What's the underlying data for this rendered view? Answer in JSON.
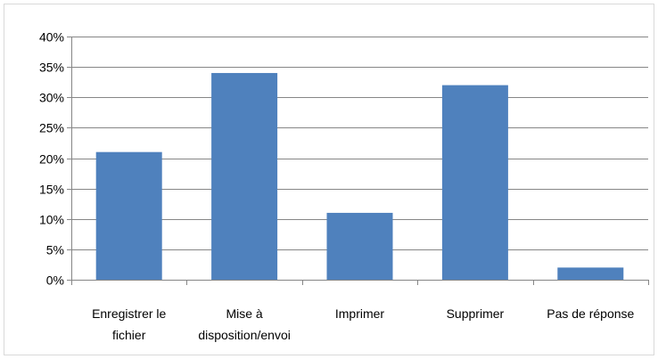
{
  "chart_data": {
    "type": "bar",
    "categories": [
      [
        "Enregistrer le",
        "fichier"
      ],
      [
        "Mise à",
        "disposition/envoi"
      ],
      [
        "Imprimer"
      ],
      [
        "Supprimer"
      ],
      [
        "Pas de réponse"
      ]
    ],
    "values": [
      21,
      34,
      11,
      32,
      2
    ],
    "value_unit": "%",
    "y_ticks": [
      "0%",
      "5%",
      "10%",
      "15%",
      "20%",
      "25%",
      "30%",
      "35%",
      "40%"
    ],
    "ylim": [
      0,
      40
    ],
    "grid": true,
    "legend": "none",
    "bar_color": "#4f81bd",
    "grid_color": "#868686"
  }
}
